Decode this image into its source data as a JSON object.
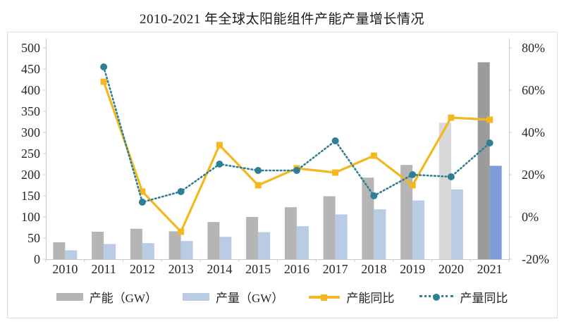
{
  "title": "2010-2021 年全球太阳能组件产能产量增长情况",
  "chart_data": {
    "type": "bar",
    "subtype": "combo-bar-line-dual-axis",
    "title": "2010-2021 年全球太阳能组件产能产量增长情况",
    "categories": [
      "2010",
      "2011",
      "2012",
      "2013",
      "2014",
      "2015",
      "2016",
      "2017",
      "2018",
      "2019",
      "2020",
      "2021"
    ],
    "bar_series": [
      {
        "name": "产能（GW）",
        "axis": "left",
        "color": "#b5b5b5",
        "color_overrides": {
          "2020": "#d8d8d8",
          "2021": "#9b9b9b"
        },
        "values": [
          40,
          65,
          72,
          66,
          88,
          100,
          123,
          149,
          193,
          223,
          323,
          466
        ]
      },
      {
        "name": "产量（GW）",
        "axis": "left",
        "color": "#b9cce4",
        "color_overrides": {
          "2021": "#7d9bd6"
        },
        "values": [
          21,
          36,
          38,
          43,
          53,
          64,
          78,
          106,
          118,
          139,
          165,
          221
        ]
      }
    ],
    "line_series": [
      {
        "name": "产能同比",
        "axis": "right",
        "color": "#f3b81f",
        "style": "solid",
        "marker": "square",
        "values_pct": [
          null,
          64,
          12,
          -7,
          34,
          15,
          23,
          21,
          29,
          15,
          47,
          46
        ]
      },
      {
        "name": "产量同比",
        "axis": "right",
        "color": "#2e7f96",
        "style": "dotted",
        "marker": "circle",
        "values_pct": [
          null,
          71,
          7,
          12,
          25,
          22,
          22,
          36,
          10,
          20,
          19,
          35
        ]
      }
    ],
    "left_axis": {
      "min": 0,
      "max": 500,
      "step": 50,
      "tick_labels": [
        "0",
        "50",
        "100",
        "150",
        "200",
        "250",
        "300",
        "350",
        "400",
        "450",
        "500"
      ]
    },
    "right_axis": {
      "min_pct": -20,
      "max_pct": 80,
      "step_pct": 20,
      "tick_labels": [
        "-20%",
        "0%",
        "20%",
        "40%",
        "60%",
        "80%"
      ]
    },
    "grid": false,
    "legend_position": "bottom"
  },
  "colors": {
    "background": "#ffffff",
    "frame_border": "#dcdcdc",
    "axis_line": "#c9c9c9",
    "text": "#262626"
  }
}
